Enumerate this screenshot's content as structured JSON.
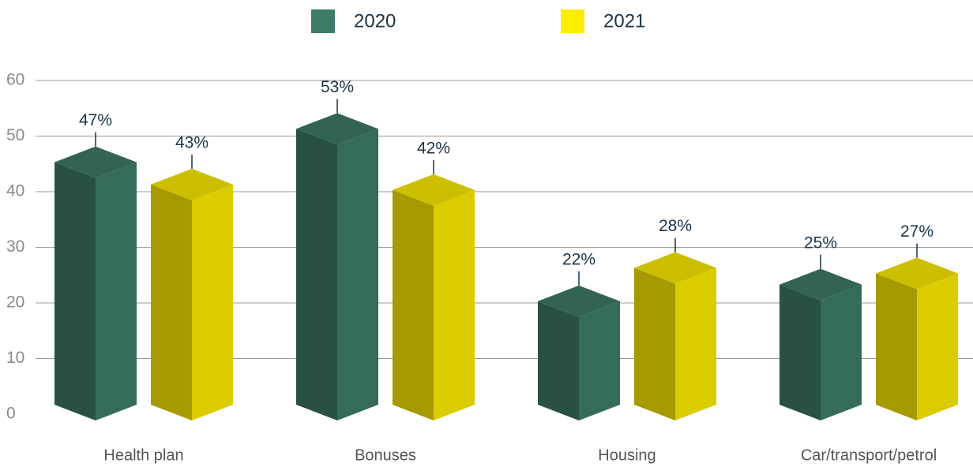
{
  "chart_data": {
    "type": "bar3d",
    "categories": [
      "Health plan",
      "Bonuses",
      "Housing",
      "Car/transport/petrol"
    ],
    "series": [
      {
        "name": "2020",
        "color": "#3e7c68",
        "values": [
          47,
          53,
          22,
          25
        ],
        "value_labels": [
          "47%",
          "53%",
          "22%",
          "25%"
        ]
      },
      {
        "name": "2021",
        "color": "#ffed00",
        "values": [
          43,
          42,
          28,
          27
        ],
        "value_labels": [
          "43%",
          "42%",
          "28%",
          "27%"
        ]
      }
    ],
    "ylim": [
      0,
      60
    ],
    "yticks": [
      0,
      10,
      20,
      30,
      40,
      50,
      60
    ],
    "grid": true,
    "legend": "top"
  }
}
